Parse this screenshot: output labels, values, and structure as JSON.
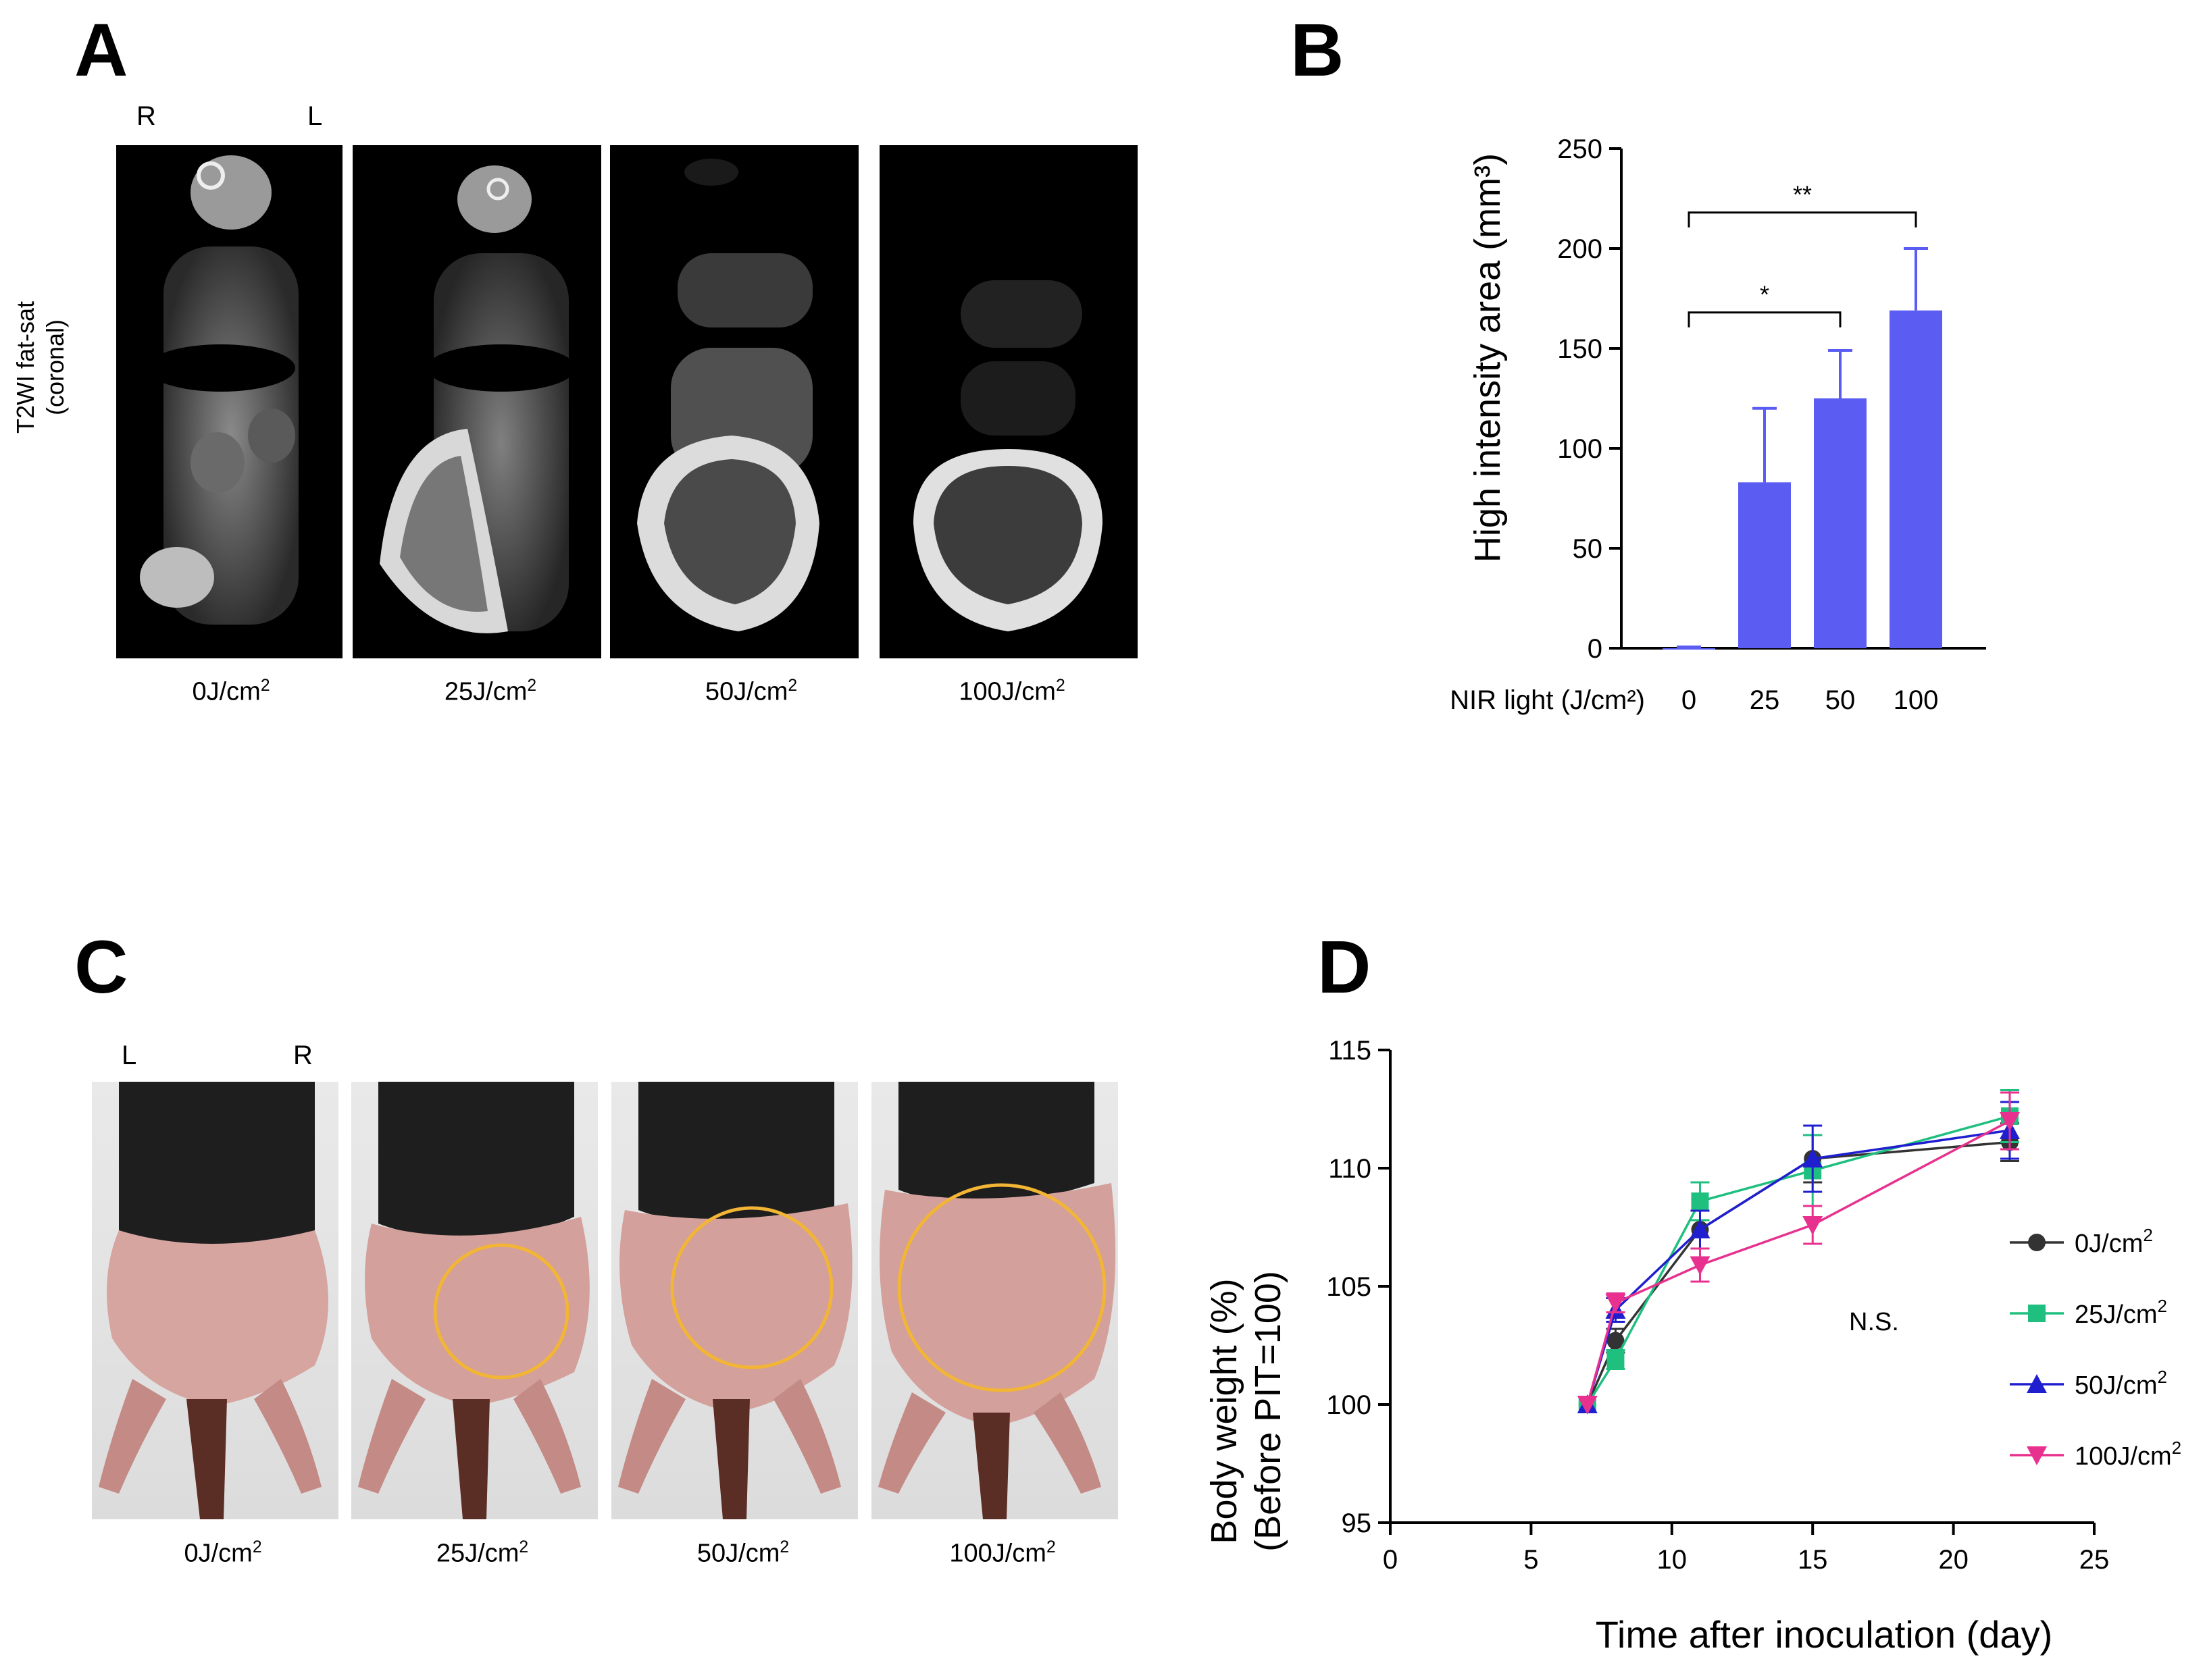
{
  "panel_a": {
    "label": "A",
    "side_left": "R",
    "side_right": "L",
    "ylabel_line1": "T2WI fat-sat",
    "ylabel_line2": "(coronal)",
    "captions": [
      "0J/cm",
      "25J/cm",
      "50J/cm",
      "100J/cm"
    ],
    "unit_sup": "2"
  },
  "panel_b": {
    "label": "B",
    "sig_low": "*",
    "sig_high": "**"
  },
  "panel_c": {
    "label": "C",
    "side_left": "L",
    "side_right": "R",
    "captions": [
      "0J/cm",
      "25J/cm",
      "50J/cm",
      "100J/cm"
    ],
    "unit_sup": "2",
    "circle_color": "#f2b535"
  },
  "panel_d": {
    "label": "D",
    "annotation": "N.S."
  },
  "chart_data": [
    {
      "type": "bar",
      "panel": "B",
      "categories": [
        "0",
        "25",
        "50",
        "100"
      ],
      "values": [
        0,
        83,
        125,
        169
      ],
      "errors": [
        0,
        37,
        24,
        31
      ],
      "color": "#5a5cf2",
      "ylabel": "High intensity area (mm³)",
      "xlabel": "NIR light (J/cm²)",
      "ylim": [
        0,
        250
      ],
      "yticks": [
        0,
        50,
        100,
        150,
        200,
        250
      ],
      "significance": [
        {
          "from": "0",
          "to": "50",
          "label": "*"
        },
        {
          "from": "0",
          "to": "100",
          "label": "**"
        }
      ]
    },
    {
      "type": "line",
      "panel": "D",
      "xlabel": "Time after inoculation (day)",
      "ylabel_line1": "Body weight  (%)",
      "ylabel_line2": "(Before PIT=100)",
      "xlim": [
        0,
        25
      ],
      "ylim": [
        95,
        115
      ],
      "xticks": [
        0,
        5,
        10,
        15,
        20,
        25
      ],
      "yticks": [
        95,
        100,
        105,
        110,
        115
      ],
      "x": [
        7,
        8,
        11,
        15,
        22
      ],
      "series": [
        {
          "name": "0J/cm²",
          "legend_text": "0J/cm",
          "color": "#333333",
          "marker": "circle",
          "values": [
            100,
            102.7,
            107.4,
            110.4,
            111.1
          ],
          "errors": [
            0,
            0.5,
            0.8,
            1.0,
            0.8
          ]
        },
        {
          "name": "25J/cm²",
          "legend_text": "25J/cm",
          "color": "#1fbf7f",
          "marker": "square",
          "values": [
            100,
            101.9,
            108.6,
            109.9,
            112.2
          ],
          "errors": [
            0,
            0.4,
            0.8,
            1.5,
            1.1
          ]
        },
        {
          "name": "50J/cm²",
          "legend_text": "50J/cm",
          "color": "#1f1fcf",
          "marker": "triangle-up",
          "values": [
            100,
            104.0,
            107.4,
            110.4,
            111.6
          ],
          "errors": [
            0,
            0.5,
            0.8,
            1.4,
            1.2
          ]
        },
        {
          "name": "100J/cm²",
          "legend_text": "100J/cm",
          "color": "#e8318f",
          "marker": "triangle-down",
          "values": [
            100,
            104.3,
            105.9,
            107.6,
            112.0
          ],
          "errors": [
            0,
            0.4,
            0.7,
            0.8,
            1.2
          ]
        }
      ]
    }
  ]
}
